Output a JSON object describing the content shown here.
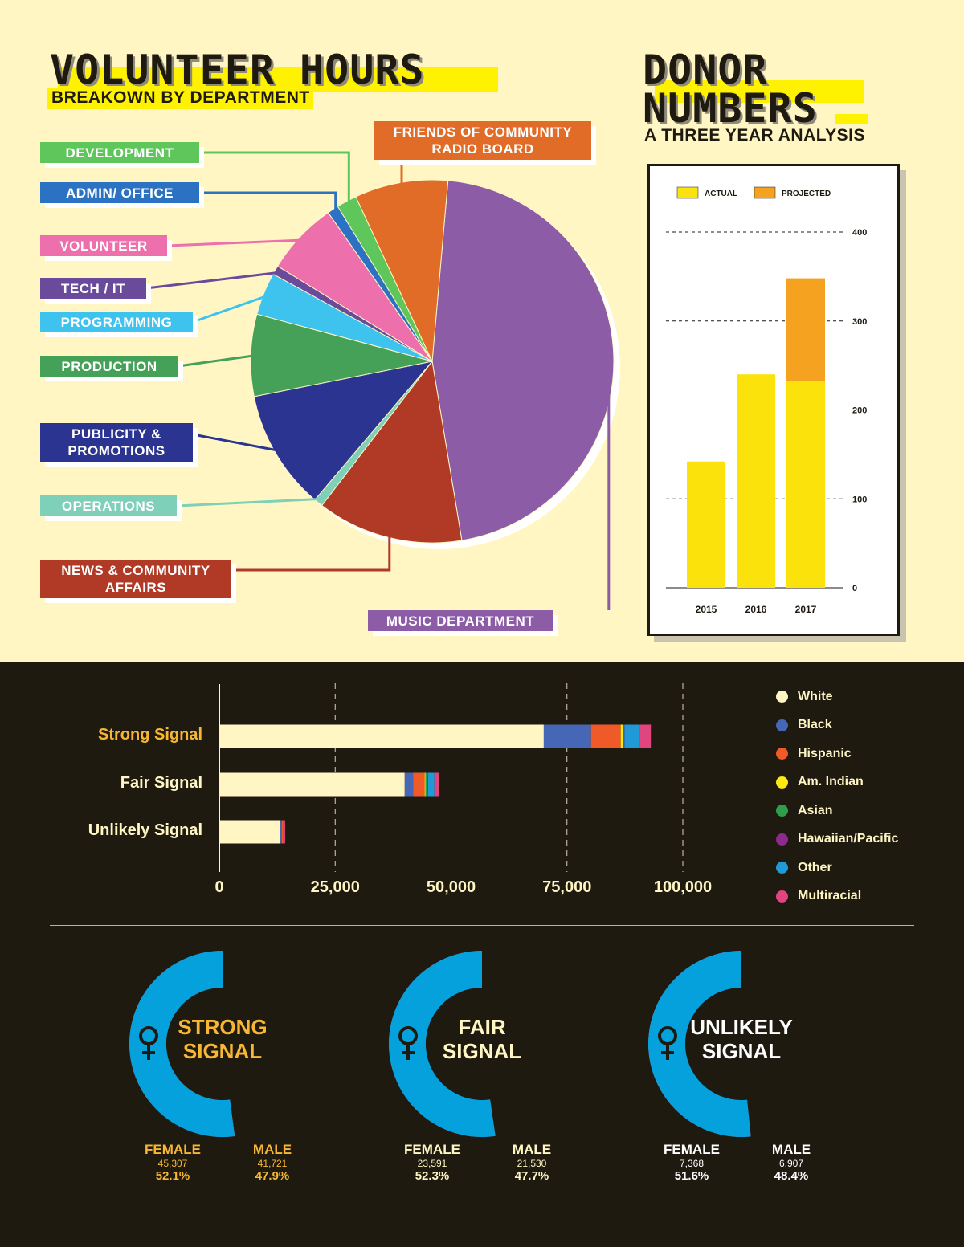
{
  "volunteer": {
    "title": "VOLUNTEER HOURS",
    "subtitle": "BREAKOWN BY DEPARTMENT",
    "chart_data": {
      "type": "pie",
      "unit": "percent",
      "slices": [
        {
          "label": "MUSIC DEPARTMENT",
          "value": 46.0,
          "color": "#8c5ca6"
        },
        {
          "label": "NEWS & COMMUNITY\nAFFAIRS",
          "value": 13.0,
          "color": "#b03a26"
        },
        {
          "label": "OPERATIONS",
          "value": 0.8,
          "color": "#7fd0b8"
        },
        {
          "label": "PUBLICITY &\nPROMOTIONS",
          "value": 10.7,
          "color": "#2b3591"
        },
        {
          "label": "PRODUCTION",
          "value": 7.3,
          "color": "#45a058"
        },
        {
          "label": "PROGRAMMING",
          "value": 3.8,
          "color": "#3ec3ef"
        },
        {
          "label": "TECH / IT",
          "value": 0.8,
          "color": "#6a4b9b"
        },
        {
          "label": "VOLUNTEER",
          "value": 6.5,
          "color": "#ed70ad"
        },
        {
          "label": "ADMIN/ OFFICE",
          "value": 1.0,
          "color": "#2c72c2"
        },
        {
          "label": "DEVELOPMENT",
          "value": 1.8,
          "color": "#5fc65c"
        },
        {
          "label": "FRIENDS OF COMMUNITY\nRADIO BOARD",
          "value": 8.3,
          "color": "#e06c27"
        }
      ]
    }
  },
  "donor": {
    "title_line1": "DONOR",
    "title_line2": "NUMBERS",
    "subtitle": "A THREE YEAR ANALYSIS",
    "chart_data": {
      "type": "bar",
      "categories": [
        "2015",
        "2016",
        "2017"
      ],
      "series": [
        {
          "name": "ACTUAL",
          "values": [
            142,
            240,
            232
          ],
          "color": "#fbe20a"
        },
        {
          "name": "PROJECTED",
          "values": [
            0,
            0,
            116
          ],
          "color": "#f4a220"
        }
      ],
      "stacked": true,
      "ylim": [
        0,
        400
      ],
      "yticks": [
        0,
        100,
        200,
        300,
        400
      ],
      "grid": true,
      "legend": "top-left"
    }
  },
  "ethnicity": {
    "chart_data": {
      "type": "bar",
      "orientation": "horizontal",
      "stacked": true,
      "categories": [
        "Strong Signal",
        "Fair Signal",
        "Unlikely Signal"
      ],
      "category_colors": [
        "#f7b733",
        "#fff6c4",
        "#fff6c4"
      ],
      "series": [
        {
          "name": "White",
          "color": "#fff6c4",
          "values": [
            70000,
            40000,
            13200
          ]
        },
        {
          "name": "Black",
          "color": "#4667b5",
          "values": [
            10200,
            1800,
            300
          ]
        },
        {
          "name": "Hispanic",
          "color": "#f05a28",
          "values": [
            6400,
            2500,
            250
          ]
        },
        {
          "name": "Am. Indian",
          "color": "#fcea10",
          "values": [
            400,
            200,
            50
          ]
        },
        {
          "name": "Asian",
          "color": "#2f9e4c",
          "values": [
            300,
            400,
            50
          ]
        },
        {
          "name": "Hawaiian/Pacific",
          "color": "#8e2a8e",
          "values": [
            100,
            100,
            30
          ]
        },
        {
          "name": "Other",
          "color": "#1f9ad6",
          "values": [
            3300,
            1400,
            150
          ]
        },
        {
          "name": "Multiracial",
          "color": "#e04580",
          "values": [
            2400,
            1000,
            170
          ]
        }
      ],
      "xlim": [
        0,
        110000
      ],
      "xticks": [
        "0",
        "25,000",
        "50,000",
        "75,000",
        "100,000"
      ],
      "xtick_values": [
        0,
        25000,
        50000,
        75000,
        100000
      ],
      "grid": true,
      "legend": "right"
    }
  },
  "gender": {
    "chart_data": [
      {
        "type": "pie",
        "title": "STRONG\nSIGNAL",
        "title_color": "#f7b733",
        "stat_color": "#f7b733",
        "slices": [
          {
            "label": "FEMALE",
            "count": "45,307",
            "pct": "52.1%",
            "value": 52.1,
            "color": "#ea2128"
          },
          {
            "label": "MALE",
            "count": "41,721",
            "pct": "47.9%",
            "value": 47.9,
            "color": "#05a1dd"
          }
        ]
      },
      {
        "type": "pie",
        "title": "FAIR\nSIGNAL",
        "title_color": "#fff6c4",
        "stat_color": "#fff6c4",
        "slices": [
          {
            "label": "FEMALE",
            "count": "23,591",
            "pct": "52.3%",
            "value": 52.3,
            "color": "#ea2128"
          },
          {
            "label": "MALE",
            "count": "21,530",
            "pct": "47.7%",
            "value": 47.7,
            "color": "#05a1dd"
          }
        ]
      },
      {
        "type": "pie",
        "title": "UNLIKELY\nSIGNAL",
        "title_color": "#ffffff",
        "stat_color": "#ffffff",
        "slices": [
          {
            "label": "FEMALE",
            "count": "7,368",
            "pct": "51.6%",
            "value": 51.6,
            "color": "#ea2128"
          },
          {
            "label": "MALE",
            "count": "6,907",
            "pct": "48.4%",
            "value": 48.4,
            "color": "#05a1dd"
          }
        ]
      }
    ]
  },
  "icons": {
    "female": "female-symbol-icon",
    "male": "male-symbol-icon"
  }
}
